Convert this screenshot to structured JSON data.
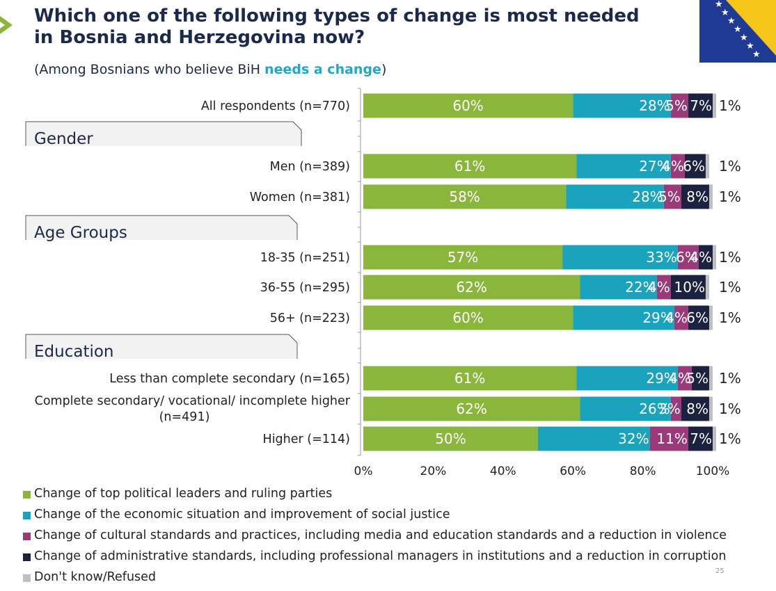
{
  "header": {
    "title": "Which one of the following types of change is most needed in Bosnia and Herzegovina now?",
    "subtitle_prefix": "(Among Bosnians who believe BiH ",
    "subtitle_highlight": "needs a change",
    "subtitle_suffix": ")"
  },
  "page_number": "25",
  "chart_data": {
    "type": "bar",
    "orientation": "horizontal",
    "stacked": true,
    "xlim": [
      0,
      100
    ],
    "x_ticks": [
      "0%",
      "20%",
      "40%",
      "60%",
      "80%",
      "100%"
    ],
    "groups": [
      "Gender",
      "Age Groups",
      "Education"
    ],
    "categories": [
      "All respondents (n=770)",
      "Men (n=389)",
      "Women (n=381)",
      "18-35 (n=251)",
      "36-55 (n=295)",
      "56+ (n=223)",
      "Less than complete secondary (n=165)",
      "Complete secondary/ vocational/ incomplete higher (n=491)",
      "Higher (=114)"
    ],
    "series": [
      {
        "name": "Change of top political leaders and ruling parties",
        "color": "#8bb63c",
        "values": [
          60,
          61,
          58,
          57,
          62,
          60,
          61,
          62,
          50
        ]
      },
      {
        "name": "Change of the economic situation and improvement of social justice",
        "color": "#1aa3bd",
        "values": [
          28,
          27,
          28,
          33,
          22,
          29,
          29,
          26,
          32
        ]
      },
      {
        "name": "Change of cultural standards and practices, including media and education standards and a reduction in violence",
        "color": "#9b3a78",
        "values": [
          5,
          4,
          5,
          6,
          4,
          4,
          4,
          3,
          11
        ]
      },
      {
        "name": "Change of administrative standards, including professional managers in institutions and a reduction in corruption",
        "color": "#1b2240",
        "values": [
          7,
          6,
          8,
          4,
          10,
          6,
          5,
          8,
          7
        ]
      },
      {
        "name": "Don't know/Refused",
        "color": "#c0c0c0",
        "values": [
          1,
          1,
          1,
          1,
          1,
          1,
          1,
          1,
          1
        ]
      }
    ]
  }
}
